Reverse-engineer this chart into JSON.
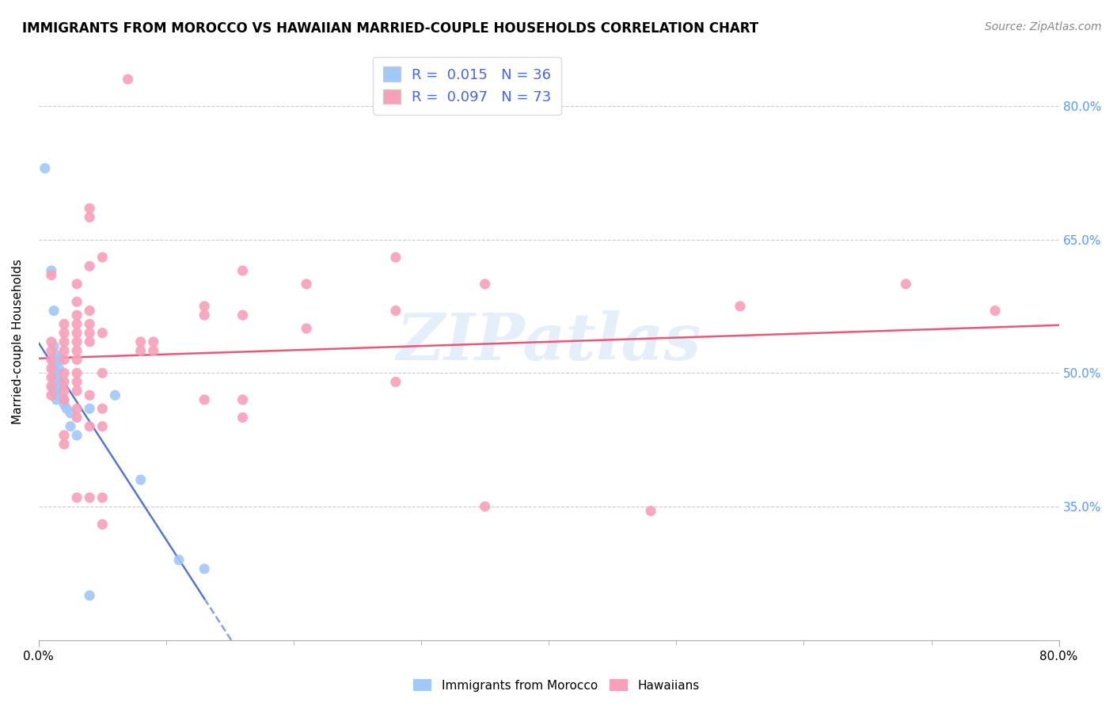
{
  "title": "IMMIGRANTS FROM MOROCCO VS HAWAIIAN MARRIED-COUPLE HOUSEHOLDS CORRELATION CHART",
  "source": "Source: ZipAtlas.com",
  "ylabel": "Married-couple Households",
  "xlim": [
    0.0,
    0.8
  ],
  "ylim": [
    0.2,
    0.87
  ],
  "ytick_labels": [
    "35.0%",
    "50.0%",
    "65.0%",
    "80.0%"
  ],
  "ytick_values": [
    0.35,
    0.5,
    0.65,
    0.8
  ],
  "xtick_minor_values": [
    0.0,
    0.1,
    0.2,
    0.3,
    0.4,
    0.5,
    0.6,
    0.7,
    0.8
  ],
  "xtick_label_values": [
    0.0,
    0.8
  ],
  "xtick_label_texts": [
    "0.0%",
    "80.0%"
  ],
  "blue_R": 0.015,
  "blue_N": 36,
  "pink_R": 0.097,
  "pink_N": 73,
  "blue_color": "#a0c8f8",
  "pink_color": "#f8a0b8",
  "blue_line_color": "#5577cc",
  "pink_line_color": "#ee5577",
  "blue_scatter": [
    [
      0.005,
      0.73
    ],
    [
      0.01,
      0.615
    ],
    [
      0.012,
      0.57
    ],
    [
      0.012,
      0.53
    ],
    [
      0.012,
      0.51
    ],
    [
      0.012,
      0.505
    ],
    [
      0.012,
      0.5
    ],
    [
      0.012,
      0.495
    ],
    [
      0.012,
      0.49
    ],
    [
      0.012,
      0.485
    ],
    [
      0.012,
      0.48
    ],
    [
      0.014,
      0.52
    ],
    [
      0.014,
      0.515
    ],
    [
      0.014,
      0.5
    ],
    [
      0.014,
      0.495
    ],
    [
      0.014,
      0.49
    ],
    [
      0.014,
      0.485
    ],
    [
      0.014,
      0.48
    ],
    [
      0.014,
      0.475
    ],
    [
      0.014,
      0.47
    ],
    [
      0.016,
      0.515
    ],
    [
      0.016,
      0.505
    ],
    [
      0.016,
      0.49
    ],
    [
      0.018,
      0.485
    ],
    [
      0.02,
      0.47
    ],
    [
      0.02,
      0.465
    ],
    [
      0.022,
      0.46
    ],
    [
      0.025,
      0.455
    ],
    [
      0.025,
      0.44
    ],
    [
      0.03,
      0.43
    ],
    [
      0.04,
      0.46
    ],
    [
      0.06,
      0.475
    ],
    [
      0.08,
      0.38
    ],
    [
      0.11,
      0.29
    ],
    [
      0.13,
      0.28
    ],
    [
      0.04,
      0.25
    ]
  ],
  "pink_scatter": [
    [
      0.01,
      0.535
    ],
    [
      0.01,
      0.525
    ],
    [
      0.01,
      0.515
    ],
    [
      0.01,
      0.505
    ],
    [
      0.01,
      0.495
    ],
    [
      0.01,
      0.485
    ],
    [
      0.01,
      0.475
    ],
    [
      0.01,
      0.61
    ],
    [
      0.02,
      0.555
    ],
    [
      0.02,
      0.545
    ],
    [
      0.02,
      0.535
    ],
    [
      0.02,
      0.525
    ],
    [
      0.02,
      0.515
    ],
    [
      0.02,
      0.5
    ],
    [
      0.02,
      0.49
    ],
    [
      0.02,
      0.48
    ],
    [
      0.02,
      0.47
    ],
    [
      0.02,
      0.43
    ],
    [
      0.02,
      0.42
    ],
    [
      0.03,
      0.6
    ],
    [
      0.03,
      0.58
    ],
    [
      0.03,
      0.565
    ],
    [
      0.03,
      0.555
    ],
    [
      0.03,
      0.545
    ],
    [
      0.03,
      0.535
    ],
    [
      0.03,
      0.525
    ],
    [
      0.03,
      0.515
    ],
    [
      0.03,
      0.5
    ],
    [
      0.03,
      0.49
    ],
    [
      0.03,
      0.48
    ],
    [
      0.03,
      0.46
    ],
    [
      0.03,
      0.45
    ],
    [
      0.03,
      0.36
    ],
    [
      0.04,
      0.685
    ],
    [
      0.04,
      0.675
    ],
    [
      0.04,
      0.62
    ],
    [
      0.04,
      0.57
    ],
    [
      0.04,
      0.555
    ],
    [
      0.04,
      0.545
    ],
    [
      0.04,
      0.535
    ],
    [
      0.04,
      0.475
    ],
    [
      0.04,
      0.44
    ],
    [
      0.04,
      0.36
    ],
    [
      0.05,
      0.63
    ],
    [
      0.05,
      0.545
    ],
    [
      0.05,
      0.5
    ],
    [
      0.05,
      0.46
    ],
    [
      0.05,
      0.44
    ],
    [
      0.05,
      0.36
    ],
    [
      0.05,
      0.33
    ],
    [
      0.07,
      0.83
    ],
    [
      0.08,
      0.535
    ],
    [
      0.08,
      0.525
    ],
    [
      0.09,
      0.535
    ],
    [
      0.09,
      0.525
    ],
    [
      0.13,
      0.575
    ],
    [
      0.13,
      0.565
    ],
    [
      0.13,
      0.47
    ],
    [
      0.16,
      0.615
    ],
    [
      0.16,
      0.565
    ],
    [
      0.16,
      0.47
    ],
    [
      0.16,
      0.45
    ],
    [
      0.21,
      0.6
    ],
    [
      0.21,
      0.55
    ],
    [
      0.28,
      0.63
    ],
    [
      0.28,
      0.57
    ],
    [
      0.28,
      0.49
    ],
    [
      0.35,
      0.6
    ],
    [
      0.35,
      0.35
    ],
    [
      0.48,
      0.345
    ],
    [
      0.55,
      0.575
    ],
    [
      0.68,
      0.6
    ],
    [
      0.75,
      0.57
    ]
  ],
  "watermark": "ZIPatlas",
  "background_color": "#ffffff",
  "grid_color": "#cccccc"
}
